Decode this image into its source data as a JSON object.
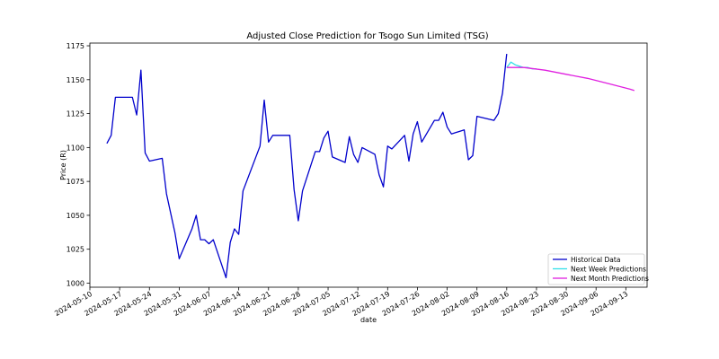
{
  "chart_data": {
    "type": "line",
    "title": "Adjusted Close Prediction for Tsogo Sun Limited (TSG)",
    "xlabel": "date",
    "ylabel": "Price (R)",
    "xlim": [
      "2024-05-10",
      "2024-09-18"
    ],
    "ylim": [
      997,
      1177
    ],
    "x_ticks": [
      "2024-05-10",
      "2024-05-17",
      "2024-05-24",
      "2024-05-31",
      "2024-06-07",
      "2024-06-14",
      "2024-06-21",
      "2024-06-28",
      "2024-07-05",
      "2024-07-12",
      "2024-07-19",
      "2024-07-26",
      "2024-08-02",
      "2024-08-09",
      "2024-08-16",
      "2024-08-23",
      "2024-08-30",
      "2024-09-06",
      "2024-09-13"
    ],
    "y_ticks": [
      1000,
      1025,
      1050,
      1075,
      1100,
      1125,
      1150,
      1175
    ],
    "grid": false,
    "legend_position": "lower-right",
    "series": [
      {
        "name": "Historical Data",
        "color": "#0000cc",
        "points": [
          [
            "2024-05-14",
            1103
          ],
          [
            "2024-05-15",
            1109
          ],
          [
            "2024-05-16",
            1137
          ],
          [
            "2024-05-17",
            1137
          ],
          [
            "2024-05-20",
            1137
          ],
          [
            "2024-05-21",
            1124
          ],
          [
            "2024-05-22",
            1157
          ],
          [
            "2024-05-23",
            1096
          ],
          [
            "2024-05-24",
            1090
          ],
          [
            "2024-05-27",
            1092
          ],
          [
            "2024-05-28",
            1066
          ],
          [
            "2024-05-30",
            1037
          ],
          [
            "2024-05-31",
            1018
          ],
          [
            "2024-06-03",
            1040
          ],
          [
            "2024-06-04",
            1050
          ],
          [
            "2024-06-05",
            1032
          ],
          [
            "2024-06-06",
            1032
          ],
          [
            "2024-06-07",
            1029
          ],
          [
            "2024-06-08",
            1032
          ],
          [
            "2024-06-11",
            1004
          ],
          [
            "2024-06-12",
            1030
          ],
          [
            "2024-06-13",
            1040
          ],
          [
            "2024-06-14",
            1036
          ],
          [
            "2024-06-15",
            1068
          ],
          [
            "2024-06-19",
            1101
          ],
          [
            "2024-06-20",
            1135
          ],
          [
            "2024-06-21",
            1104
          ],
          [
            "2024-06-22",
            1109
          ],
          [
            "2024-06-26",
            1109
          ],
          [
            "2024-06-27",
            1069
          ],
          [
            "2024-06-28",
            1046
          ],
          [
            "2024-06-29",
            1068
          ],
          [
            "2024-07-02",
            1097
          ],
          [
            "2024-07-03",
            1097
          ],
          [
            "2024-07-04",
            1107
          ],
          [
            "2024-07-05",
            1112
          ],
          [
            "2024-07-06",
            1093
          ],
          [
            "2024-07-09",
            1089
          ],
          [
            "2024-07-10",
            1108
          ],
          [
            "2024-07-11",
            1095
          ],
          [
            "2024-07-12",
            1089
          ],
          [
            "2024-07-13",
            1100
          ],
          [
            "2024-07-16",
            1095
          ],
          [
            "2024-07-17",
            1080
          ],
          [
            "2024-07-18",
            1071
          ],
          [
            "2024-07-19",
            1101
          ],
          [
            "2024-07-20",
            1099
          ],
          [
            "2024-07-23",
            1109
          ],
          [
            "2024-07-24",
            1090
          ],
          [
            "2024-07-25",
            1110
          ],
          [
            "2024-07-26",
            1119
          ],
          [
            "2024-07-27",
            1104
          ],
          [
            "2024-07-30",
            1120
          ],
          [
            "2024-07-31",
            1120
          ],
          [
            "2024-08-01",
            1126
          ],
          [
            "2024-08-02",
            1115
          ],
          [
            "2024-08-03",
            1110
          ],
          [
            "2024-08-06",
            1113
          ],
          [
            "2024-08-07",
            1091
          ],
          [
            "2024-08-08",
            1094
          ],
          [
            "2024-08-09",
            1123
          ],
          [
            "2024-08-13",
            1120
          ],
          [
            "2024-08-14",
            1125
          ],
          [
            "2024-08-15",
            1140
          ],
          [
            "2024-08-16",
            1169
          ]
        ]
      },
      {
        "name": "Next Week Predictions",
        "color": "#33e0e8",
        "points": [
          [
            "2024-08-16",
            1159
          ],
          [
            "2024-08-17",
            1163
          ],
          [
            "2024-08-18",
            1161
          ],
          [
            "2024-08-19",
            1160
          ],
          [
            "2024-08-20",
            1159
          ],
          [
            "2024-08-21",
            1159
          ],
          [
            "2024-08-22",
            1158
          ],
          [
            "2024-08-23",
            1158
          ]
        ]
      },
      {
        "name": "Next Month Predictions",
        "color": "#e020e0",
        "points": [
          [
            "2024-08-16",
            1159
          ],
          [
            "2024-08-20",
            1159
          ],
          [
            "2024-08-25",
            1157
          ],
          [
            "2024-08-30",
            1154
          ],
          [
            "2024-09-04",
            1151
          ],
          [
            "2024-09-09",
            1147
          ],
          [
            "2024-09-14",
            1143
          ],
          [
            "2024-09-15",
            1142
          ]
        ]
      }
    ]
  }
}
